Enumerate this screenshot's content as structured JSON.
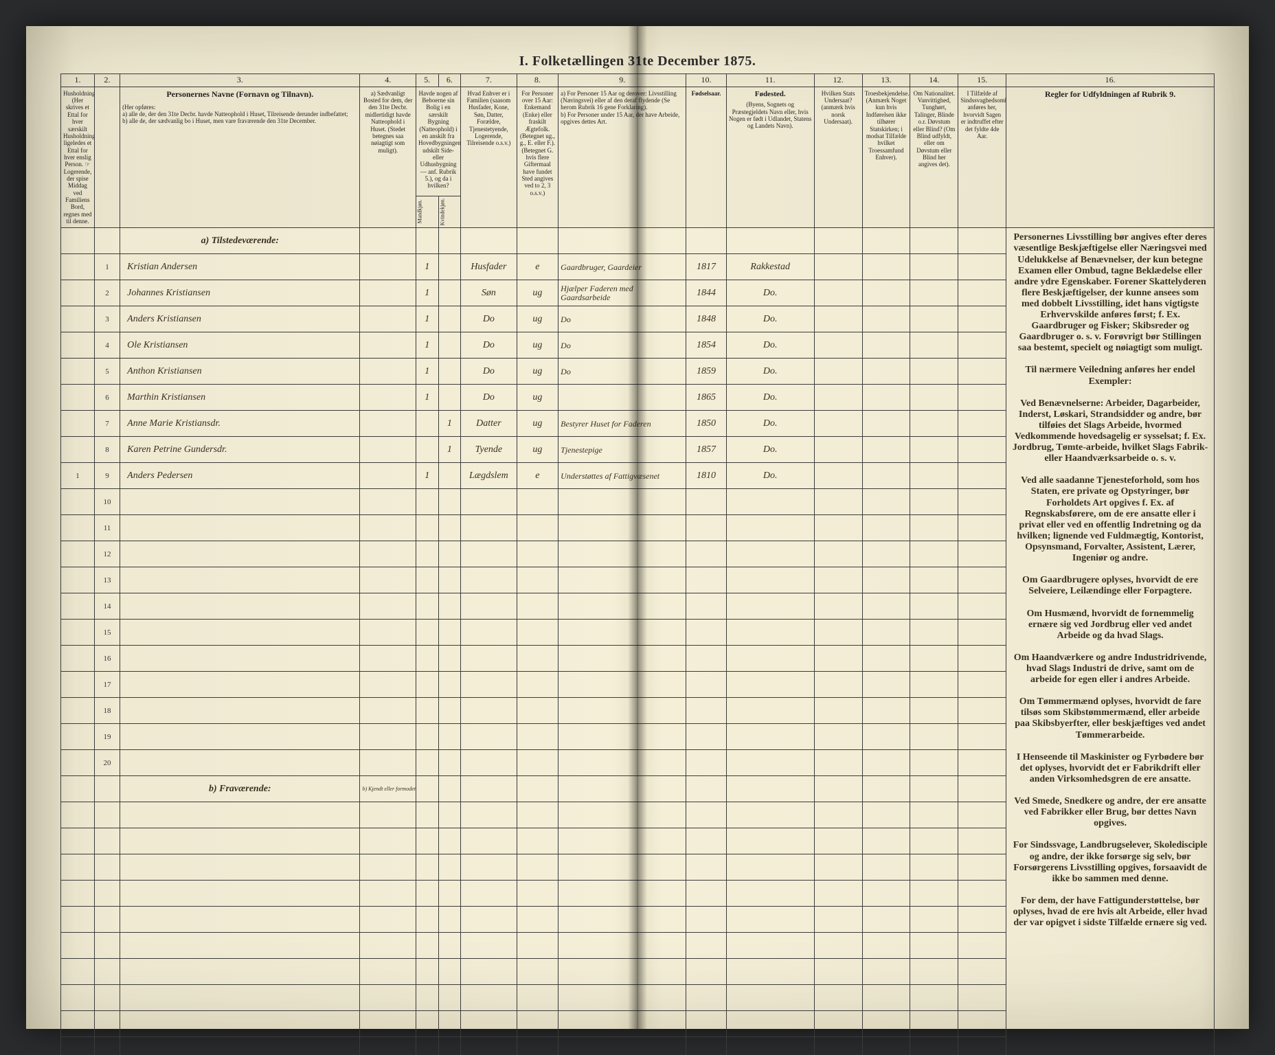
{
  "title": "I.  Folketællingen 31te December 1875.",
  "colnums": [
    "1.",
    "2.",
    "3.",
    "4.",
    "5.",
    "6.",
    "7.",
    "8.",
    "9.",
    "10.",
    "11.",
    "12.",
    "13.",
    "14.",
    "15.",
    "16."
  ],
  "headers": {
    "c1": "Husholdninger. (Her skrives et Ettal for hver særskilt Husholdning; ligeledes et Ettal for hver enslig Person.  ☞ Logerende, der spise Middag ved Familiens Bord, regnes med til denne.",
    "c2": "",
    "c3_title": "Personernes Navne (Fornavn og Tilnavn).",
    "c3_body": "(Her opføres:\na) alle de, der den 31te Decbr. havde Natteophold i Huset, Tilreisende derunder indbefattet;\nb) alle de, der sædvanlig bo i Huset, men vare fraværende den 31te December.",
    "c4": "a) Sædvanligt Bosted for dem, der den 31te Decbr. midlertidigt havde Natteophold i Huset. (Stedet betegnes saa nøiagtigt som muligt).",
    "c5_6": "Havde nogen af Beboerne sin Bolig i en særskilt Bygning (Natteophold) i en anskilt fra Hovedbygningen, udskilt Side- eller Udhusbygning — anf. Rubrik 5.), og da i hvilken?",
    "c5": "Mandkjøn.",
    "c6": "Kvindekjøn.",
    "c7": "Hvad Enhver er i Familien (saasom Husfader, Kone, Søn, Datter, Forældre, Tjenestetyende, Logerende, Tilreisende o.s.v.)",
    "c8": "For Personer over 15 Aar: Enkemand (Enke) eller fraskilt Ægtefolk. (Betegnet ug., g., E. eller F.). (Betegnet G. hvis flere Giftermaal have fundet Sted angives ved to 2, 3 o.s.v.)",
    "c9": "a) For Personer 15 Aar og derover: Livsstilling (Næringsvei) eller af den deraf flydende (Se herom Rubrik 16 gene Forklaring).\nb) For Personer under 15 Aar, der have Arbeide, opgives dettes Art.",
    "c10": "Fødselsaar.",
    "c11_title": "Fødested.",
    "c11_body": "(Byens, Sognets og Præstegjeldets Navn eller, hvis Nogen er født i Udlandet, Statens og Landets Navn).",
    "c12": "Hvilken Stats Undersaat? (anmærk hvis norsk Undersaat).",
    "c13": "Troesbekjendelse. (Anmærk Noget kun hvis Indførelsen ikke tilhører Statskirken; i modsat Tilfælde hvilket Troessamfund Enhver).",
    "c14": "Om Nationalitet. Vanvittighed, Tunghørt, Talinger, Blinde o.r. Døvstum eller Blind? (Om Blind udfyldt, eller om Døvstum eller Blind her angives det).",
    "c15": "I Tilfælde af Sindssvaghedsomhed anføres her, hvorvidt Sagen er indtruffet efter det fyldte 4de Aar.",
    "c16": "Regler for Udfyldningen af Rubrik 9."
  },
  "sections": {
    "present": "a) Tilstedeværende:",
    "absent": "b) Fraværende:",
    "absent_c4": "b) Kjendt eller formodet Opholdssted."
  },
  "rows": [
    {
      "hh": "",
      "n": "1",
      "name": "Kristian Andersen",
      "m": "1",
      "k": "",
      "rel": "Husfader",
      "civ": "e",
      "occ": "Gaardbruger, Gaardeier",
      "yr": "1817",
      "born": "Rakkestad"
    },
    {
      "hh": "",
      "n": "2",
      "name": "Johannes Kristiansen",
      "m": "1",
      "k": "",
      "rel": "Søn",
      "civ": "ug",
      "occ": "Hjælper Faderen med Gaardsarbeide",
      "yr": "1844",
      "born": "Do."
    },
    {
      "hh": "",
      "n": "3",
      "name": "Anders Kristiansen",
      "m": "1",
      "k": "",
      "rel": "Do",
      "civ": "ug",
      "occ": "Do",
      "yr": "1848",
      "born": "Do."
    },
    {
      "hh": "",
      "n": "4",
      "name": "Ole Kristiansen",
      "m": "1",
      "k": "",
      "rel": "Do",
      "civ": "ug",
      "occ": "Do",
      "yr": "1854",
      "born": "Do."
    },
    {
      "hh": "",
      "n": "5",
      "name": "Anthon Kristiansen",
      "m": "1",
      "k": "",
      "rel": "Do",
      "civ": "ug",
      "occ": "Do",
      "yr": "1859",
      "born": "Do."
    },
    {
      "hh": "",
      "n": "6",
      "name": "Marthin Kristiansen",
      "m": "1",
      "k": "",
      "rel": "Do",
      "civ": "ug",
      "occ": "",
      "yr": "1865",
      "born": "Do."
    },
    {
      "hh": "",
      "n": "7",
      "name": "Anne Marie Kristiansdr.",
      "m": "",
      "k": "1",
      "rel": "Datter",
      "civ": "ug",
      "occ": "Bestyrer Huset for Faderen",
      "yr": "1850",
      "born": "Do."
    },
    {
      "hh": "",
      "n": "8",
      "name": "Karen Petrine Gundersdr.",
      "m": "",
      "k": "1",
      "rel": "Tyende",
      "civ": "ug",
      "occ": "Tjenestepige",
      "yr": "1857",
      "born": "Do."
    },
    {
      "hh": "1",
      "n": "9",
      "name": "Anders Pedersen",
      "m": "1",
      "k": "",
      "rel": "Lægdslem",
      "civ": "e",
      "occ": "Understøttes af Fattigvæsenet",
      "yr": "1810",
      "born": "Do."
    }
  ],
  "blank_rows": [
    "10",
    "11",
    "12",
    "13",
    "14",
    "15",
    "16",
    "17",
    "18",
    "19",
    "20"
  ],
  "rules_text": "Personernes Livsstilling bør angives efter deres væsentlige Beskjæftigelse eller Næringsvei med Udelukkelse af Benævnelser, der kun betegne Examen eller Ombud, tagne Beklædelse eller andre ydre Egenskaber. Forener Skattelyderen flere Beskjæftigelser, der kunne ansees som med dobbelt Livsstilling, idet hans vigtigste Erhvervskilde anføres først; f. Ex. Gaardbruger og Fisker; Skibsreder og Gaardbruger o. s. v. Forøvrigt bør Stillingen saa bestemt, specielt og nøiagtigt som muligt.\n\nTil nærmere Veiledning anføres her endel Exempler:\n\nVed Benævnelserne: Arbeider, Dagarbeider, Inderst, Løskari, Strandsidder og andre, bør tilføies det Slags Arbeide, hvormed Vedkommende hovedsagelig er sysselsat; f. Ex. Jordbrug, Tømte-arbeide, hvilket Slags Fabrik- eller Haandværksarbeide o. s. v.\n\nVed alle saadanne Tjenesteforhold, som hos Staten, ere private og Opstyringer, bør Forholdets Art opgives f. Ex. af Regnskabsførere, om de ere ansatte eller i privat eller ved en offentlig Indretning og da hvilken; lignende ved Fuldmægtig, Kontorist, Opsynsmand, Forvalter, Assistent, Lærer, Ingeniør og andre.\n\nOm Gaardbrugere oplyses, hvorvidt de ere Selveiere, Leilændinge eller Forpagtere.\n\nOm Husmænd, hvorvidt de fornemmelig ernære sig ved Jordbrug eller ved andet Arbeide og da hvad Slags.\n\nOm Haandværkere og andre Industridrivende, hvad Slags Industri de drive, samt om de arbeide for egen eller i andres Arbeide.\n\nOm Tømmermænd oplyses, hvorvidt de fare tilsøs som Skibstømmermænd, eller arbeide paa Skibsbyerfter, eller beskjæftiges ved andet Tømmerarbeide.\n\nI Henseende til Maskinister og Fyrbødere bør det oplyses, hvorvidt det er Fabrikdrift eller anden Virksomhedsgren de ere ansatte.\n\nVed Smede, Snedkere og andre, der ere ansatte ved Fabrikker eller Brug, bør dettes Navn opgives.\n\nFor Sindssvage, Landbrugselever, Skoledisciple og andre, der ikke forsørge sig selv, bør Forsørgerens Livsstilling opgives, forsaavidt de ikke bo sammen med denne.\n\nFor dem, der have Fattigunderstøttelse, bør oplyses, hvad de ere hvis alt Arbeide, eller hvad der var opigvet i sidste Tilfælde ernære sig ved."
}
